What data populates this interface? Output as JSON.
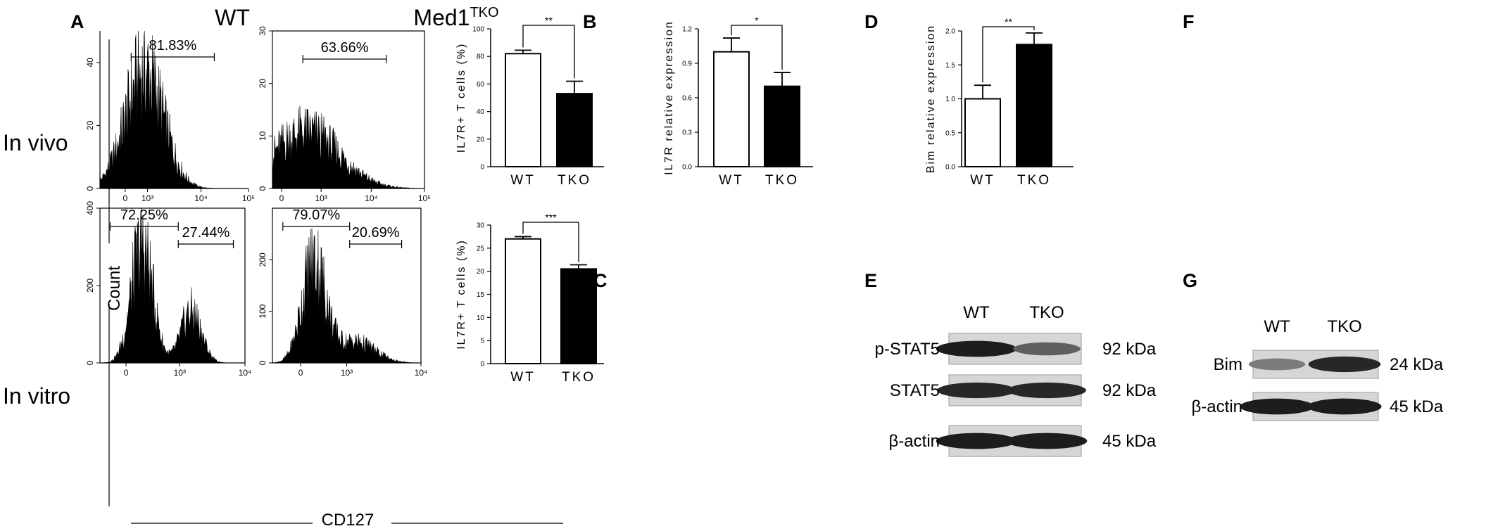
{
  "labels": {
    "A": "A",
    "B": "B",
    "C": "C",
    "D": "D",
    "E": "E",
    "F": "F",
    "G": "G",
    "wt": "WT",
    "med1": "Med1",
    "med1_sup": "TKO",
    "in_vivo": "In vivo",
    "in_vitro": "In vitro",
    "count": "Count",
    "cd127": "CD127"
  },
  "chart_data": [
    {
      "id": "A-vivo-wt",
      "type": "area",
      "panel": "A",
      "ylim": [
        0,
        50
      ],
      "yticks": [
        "0",
        "20",
        "40"
      ],
      "xticks": [
        "0",
        "10³",
        "10⁴",
        "10⁵"
      ],
      "gates": [
        {
          "label": "81.83%"
        }
      ],
      "distribution": [
        {
          "center": 0.3,
          "width": 0.13,
          "height": 41,
          "weight": 1
        }
      ]
    },
    {
      "id": "A-vivo-tko",
      "type": "area",
      "panel": "A",
      "ylim": [
        0,
        30
      ],
      "yticks": [
        "0",
        "10",
        "20",
        "30"
      ],
      "xticks": [
        "0",
        "10³",
        "10⁴",
        "10⁵"
      ],
      "gates": [
        {
          "label": "63.66%"
        }
      ],
      "distribution": [
        {
          "center": 0.22,
          "width": 0.22,
          "height": 12,
          "weight": 1
        }
      ]
    },
    {
      "id": "A-vitro-wt",
      "type": "area",
      "panel": "A",
      "ylim": [
        0,
        400
      ],
      "yticks": [
        "0",
        "200",
        "400"
      ],
      "xticks": [
        "0",
        "10³",
        "10⁴"
      ],
      "gates": [
        {
          "label": "72.25%"
        },
        {
          "label": "27.44%"
        }
      ],
      "distribution": [
        {
          "center": 0.29,
          "width": 0.075,
          "height": 330,
          "weight": 1
        },
        {
          "center": 0.63,
          "width": 0.07,
          "height": 145,
          "weight": 1
        }
      ]
    },
    {
      "id": "A-vitro-tko",
      "type": "area",
      "panel": "A",
      "ylim": [
        0,
        300
      ],
      "yticks": [
        "0",
        "100",
        "200"
      ],
      "xticks": [
        "0",
        "10³",
        "10⁴"
      ],
      "gates": [
        {
          "label": "79.07%"
        },
        {
          "label": "20.69%"
        }
      ],
      "distribution": [
        {
          "center": 0.28,
          "width": 0.08,
          "height": 215,
          "weight": 1
        },
        {
          "center": 0.56,
          "width": 0.13,
          "height": 45,
          "weight": 1
        }
      ]
    },
    {
      "id": "B",
      "type": "bar",
      "panel": "B",
      "categories": [
        "WT",
        "TKO"
      ],
      "values": [
        82,
        53
      ],
      "errors": [
        2.5,
        9
      ],
      "ylabel": "IL7R+ T cells (%)",
      "ylim": [
        0,
        100
      ],
      "yticks": [
        0,
        20,
        40,
        60,
        80,
        100
      ],
      "significance": "**"
    },
    {
      "id": "C",
      "type": "bar",
      "panel": "C",
      "categories": [
        "WT",
        "TKO"
      ],
      "values": [
        27,
        20.5
      ],
      "errors": [
        0.5,
        0.9
      ],
      "ylabel": "IL7R+ T cells (%)",
      "ylim": [
        0,
        30
      ],
      "yticks": [
        0,
        5,
        10,
        15,
        20,
        25,
        30
      ],
      "significance": "***"
    },
    {
      "id": "D",
      "type": "bar",
      "panel": "D",
      "categories": [
        "WT",
        "TKO"
      ],
      "values": [
        1.0,
        0.7
      ],
      "errors": [
        0.12,
        0.12
      ],
      "ylabel": "IL7R relative expression",
      "ylim": [
        0,
        1.2
      ],
      "yticks": [
        "0.0",
        "0.3",
        "0.6",
        "0.9",
        "1.2"
      ],
      "significance": "*"
    },
    {
      "id": "F",
      "type": "bar",
      "panel": "F",
      "categories": [
        "WT",
        "TKO"
      ],
      "values": [
        1.0,
        1.8
      ],
      "errors": [
        0.2,
        0.17
      ],
      "ylabel": "Bim relative expression",
      "ylim": [
        0,
        2.0
      ],
      "yticks": [
        "0.0",
        "0.5",
        "1.0",
        "1.5",
        "2.0"
      ],
      "significance": "**"
    }
  ],
  "blots": {
    "E": {
      "lanes": [
        "WT",
        "TKO"
      ],
      "rows": [
        {
          "name": "p-STAT5",
          "size": "92 kDa",
          "intensity": [
            0.9,
            0.55
          ]
        },
        {
          "name": "STAT5",
          "size": "92 kDa",
          "intensity": [
            0.85,
            0.85
          ]
        },
        {
          "name": "β-actin",
          "size": "45 kDa",
          "intensity": [
            0.9,
            0.9
          ]
        }
      ]
    },
    "G": {
      "lanes": [
        "WT",
        "TKO"
      ],
      "rows": [
        {
          "name": "Bim",
          "size": "24 kDa",
          "intensity": [
            0.4,
            0.85
          ]
        },
        {
          "name": "β-actin",
          "size": "45 kDa",
          "intensity": [
            0.9,
            0.9
          ]
        }
      ]
    }
  }
}
